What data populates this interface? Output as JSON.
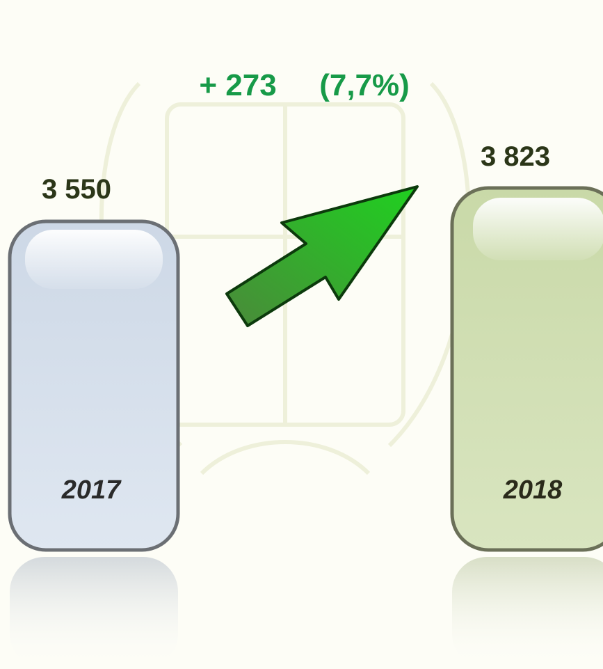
{
  "bars": [
    {
      "label": "2017",
      "value_label": "3 550"
    },
    {
      "label": "2018",
      "value_label": "3 823"
    }
  ],
  "change": {
    "absolute": "+ 273",
    "percent": "(7,7%)"
  }
}
